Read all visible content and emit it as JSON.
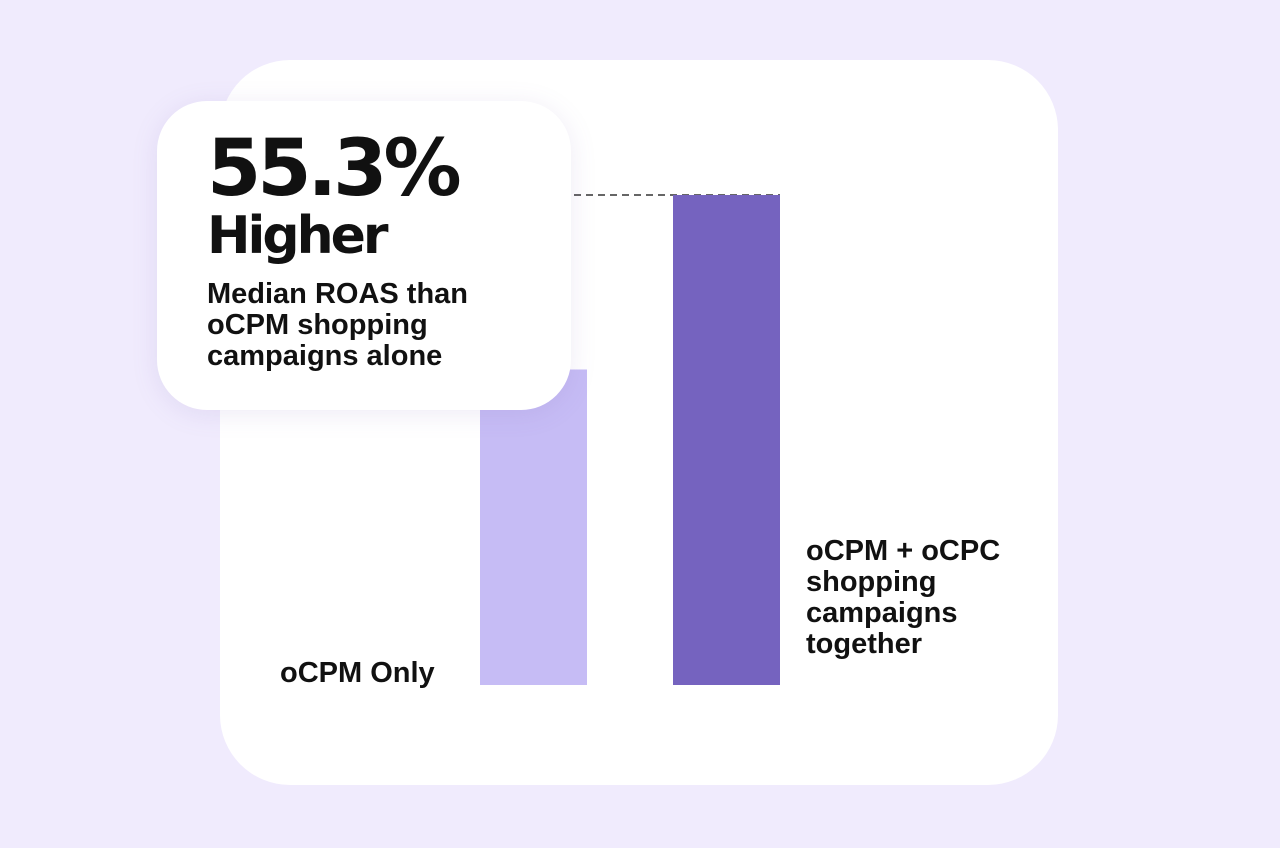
{
  "callout": {
    "stat": "55.3%",
    "stat_word": "Higher",
    "description": "Median ROAS than oCPM shopping campaigns alone"
  },
  "colors": {
    "background": "#f0ebfd",
    "card": "#ffffff",
    "bar_light": "#c6bcf5",
    "bar_dark": "#7563bf",
    "text": "#111111"
  },
  "chart_data": {
    "type": "bar",
    "categories": [
      "oCPM Only",
      "oCPM + oCPC shopping campaigns together"
    ],
    "values": [
      100,
      155.3
    ],
    "bar_colors": [
      "#c6bcf5",
      "#7563bf"
    ],
    "annotation": "55.3% Higher",
    "ylim": [
      0,
      160
    ],
    "grid": false,
    "legend": "none",
    "title": "",
    "xlabel": "",
    "ylabel": ""
  }
}
